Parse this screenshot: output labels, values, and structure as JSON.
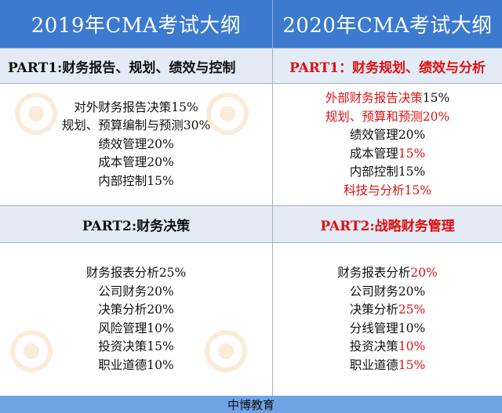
{
  "header": {
    "col2019_title": "2019年CMA考试大纲",
    "col2020_title": "2020年CMA考试大纲"
  },
  "part1": {
    "label_2019": "PART1:财务报告、规划、绩效与控制",
    "label_2020": "PART1：财务规划、绩效与分析",
    "items_2019": [
      {
        "text": "对外财务报告决策",
        "pct": "15%"
      },
      {
        "text": "规划、预算编制与预测",
        "pct": "30%"
      },
      {
        "text": "绩效管理",
        "pct": "20%"
      },
      {
        "text": "成本管理",
        "pct": "20%"
      },
      {
        "text": "内部控制",
        "pct": "15%"
      }
    ],
    "items_2020": [
      {
        "text": "外部财务报告决策",
        "pct": "15%"
      },
      {
        "text": "规划、预算和预测",
        "pct": "20%"
      },
      {
        "text": "绩效管理",
        "pct": "20%"
      },
      {
        "text": "成本管理",
        "pct": "15%"
      },
      {
        "text": "内部控制",
        "pct": "15%"
      },
      {
        "text": "科技与分析",
        "pct": "15%"
      }
    ]
  },
  "part2": {
    "label_2019": "PART2:财务决策",
    "label_2020": "PART2:战略财务管理",
    "items_2019": [
      {
        "text": "财务报表分析",
        "pct": "25%"
      },
      {
        "text": "公司财务",
        "pct": "20%"
      },
      {
        "text": "决策分析",
        "pct": "20%"
      },
      {
        "text": "风险管理",
        "pct": "10%"
      },
      {
        "text": "投资决策",
        "pct": "15%"
      },
      {
        "text": "职业道德",
        "pct": "10%"
      }
    ],
    "items_2020": [
      {
        "text": "财务报表分析",
        "pct": "20%"
      },
      {
        "text": "公司财务",
        "pct": "20%"
      },
      {
        "text": "决策分析",
        "pct": "25%"
      },
      {
        "text": "分线管理",
        "pct": "10%"
      },
      {
        "text": "投资决策",
        "pct": "10%"
      },
      {
        "text": "职业道德",
        "pct": "15%"
      }
    ]
  },
  "footer": {
    "text": "中博教育"
  },
  "colors": {
    "header_bg": "#3c7ad0",
    "subheader_bg": "#e3ebf6",
    "highlight_red": "#e01010",
    "footer_bg": "#6fa3e4"
  }
}
